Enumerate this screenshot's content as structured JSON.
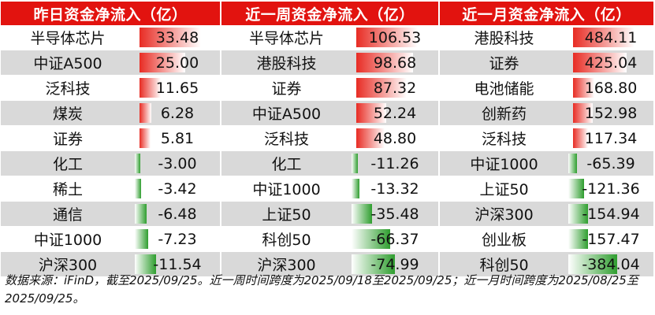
{
  "colors": {
    "header_bg": "#e2130f",
    "inflow_bar": "#e82c24",
    "outflow_bar": "#2f9e2f",
    "row_alt": "#d9d9d9"
  },
  "panels": [
    {
      "title": "昨日资金净流入（亿）",
      "rows": [
        {
          "name": "半导体芯片",
          "value": "33.48"
        },
        {
          "name": "中证A500",
          "value": "25.00"
        },
        {
          "name": "泛科技",
          "value": "11.65"
        },
        {
          "name": "煤炭",
          "value": "6.28"
        },
        {
          "name": "证券",
          "value": "5.81"
        },
        {
          "name": "化工",
          "value": "-3.00"
        },
        {
          "name": "稀土",
          "value": "-3.42"
        },
        {
          "name": "通信",
          "value": "-6.48"
        },
        {
          "name": "中证1000",
          "value": "-7.23"
        },
        {
          "name": "沪深300",
          "value": "-11.54"
        }
      ]
    },
    {
      "title": "近一周资金净流入（亿）",
      "rows": [
        {
          "name": "半导体芯片",
          "value": "106.53"
        },
        {
          "name": "港股科技",
          "value": "98.68"
        },
        {
          "name": "证券",
          "value": "87.32"
        },
        {
          "name": "中证A500",
          "value": "52.24"
        },
        {
          "name": "泛科技",
          "value": "48.80"
        },
        {
          "name": "化工",
          "value": "-11.26"
        },
        {
          "name": "中证1000",
          "value": "-13.32"
        },
        {
          "name": "上证50",
          "value": "-35.48"
        },
        {
          "name": "科创50",
          "value": "-66.37"
        },
        {
          "name": "沪深300",
          "value": "-74.99"
        }
      ]
    },
    {
      "title": "近一月资金净流入（亿）",
      "rows": [
        {
          "name": "港股科技",
          "value": "484.11"
        },
        {
          "name": "证券",
          "value": "425.04"
        },
        {
          "name": "电池储能",
          "value": "168.80"
        },
        {
          "name": "创新药",
          "value": "152.98"
        },
        {
          "name": "泛科技",
          "value": "117.34"
        },
        {
          "name": "中证1000",
          "value": "-65.39"
        },
        {
          "name": "上证50",
          "value": "-121.36"
        },
        {
          "name": "沪深300",
          "value": "-154.94"
        },
        {
          "name": "创业板",
          "value": "-157.47"
        },
        {
          "name": "科创50",
          "value": "-384.04"
        }
      ]
    }
  ],
  "footnote": "数据来源：iFinD，截至2025/09/25。近一周时间跨度为2025/09/18至2025/09/25；近一月时间跨度为2025/08/25至2025/09/25。"
}
